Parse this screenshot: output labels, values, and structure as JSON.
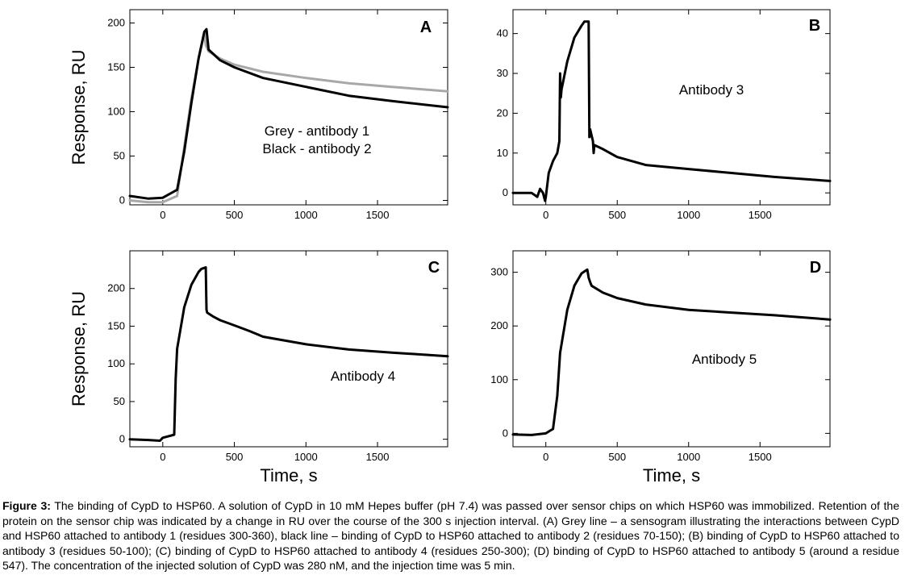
{
  "figure": {
    "caption_label": "Figure 3:",
    "caption_text": "The binding of CypD to HSP60. A solution of CypD in 10 mM Hepes buffer (pH 7.4) was passed over sensor chips on which HSP60 was immobilized. Retention of the protein on the sensor chip was indicated by a change in RU over the course of the 300 s injection interval. (A) Grey line – a sensogram illustrating the interactions between CypD and HSP60 attached to antibody 1 (residues 300-360), black line – binding of CypD to HSP60 attached to antibody 2 (residues 70-150); (B) binding of CypD to HSP60 attached to antibody 3 (residues 50-100); (C) binding of CypD to HSP60 attached to antibody 4 (residues 250-300); (D) binding of CypD to HSP60 attached to antibody 5 (around a residue 547). The concentration of the injected solution of CypD was 280 nM, and the injection time was 5 min.",
    "ylabel": "Response, RU",
    "xlabel": "Time, s"
  },
  "colors": {
    "black": "#000000",
    "grey": "#a8a8a8"
  },
  "chart_data": [
    {
      "panel": "A",
      "type": "line",
      "xlim": [
        -230,
        1990
      ],
      "ylim": [
        -5,
        215
      ],
      "xticks": [
        0,
        500,
        1000,
        1500
      ],
      "yticks": [
        0,
        50,
        100,
        150,
        200
      ],
      "annotations": [
        "Grey - antibody 1",
        "Black - antibody 2"
      ],
      "series": [
        {
          "name": "antibody 1",
          "color": "grey",
          "x": [
            -230,
            -100,
            0,
            100,
            150,
            200,
            250,
            290,
            300,
            320,
            400,
            500,
            700,
            1000,
            1300,
            1600,
            1990
          ],
          "y": [
            0,
            -2,
            -2,
            5,
            60,
            115,
            160,
            188,
            175,
            168,
            160,
            153,
            145,
            138,
            132,
            128,
            123
          ]
        },
        {
          "name": "antibody 2",
          "color": "black",
          "x": [
            -230,
            -100,
            0,
            100,
            150,
            200,
            250,
            290,
            305,
            320,
            400,
            500,
            700,
            1000,
            1300,
            1600,
            1990
          ],
          "y": [
            5,
            2,
            3,
            12,
            55,
            110,
            160,
            190,
            193,
            170,
            158,
            150,
            138,
            128,
            118,
            112,
            105
          ]
        }
      ]
    },
    {
      "panel": "B",
      "type": "line",
      "xlim": [
        -230,
        1990
      ],
      "ylim": [
        -3,
        46
      ],
      "xticks": [
        0,
        500,
        1000,
        1500
      ],
      "yticks": [
        0,
        10,
        20,
        30,
        40
      ],
      "annotations": [
        "Antibody 3"
      ],
      "series": [
        {
          "name": "antibody 3",
          "color": "black",
          "x": [
            -230,
            -100,
            -60,
            -40,
            -20,
            -5,
            0,
            20,
            50,
            80,
            95,
            100,
            105,
            110,
            150,
            200,
            250,
            270,
            300,
            305,
            310,
            330,
            335,
            340,
            400,
            500,
            700,
            1000,
            1300,
            1600,
            1990
          ],
          "y": [
            0,
            0,
            -1,
            1,
            0,
            -2,
            -1,
            5,
            8,
            10,
            13,
            30,
            24,
            26,
            33,
            39,
            42,
            43,
            43,
            14,
            16,
            13,
            10,
            12,
            11,
            9,
            7,
            6,
            5,
            4,
            3
          ]
        }
      ]
    },
    {
      "panel": "C",
      "type": "line",
      "xlim": [
        -230,
        1990
      ],
      "ylim": [
        -10,
        250
      ],
      "xticks": [
        0,
        500,
        1000,
        1500
      ],
      "yticks": [
        0,
        50,
        100,
        150,
        200
      ],
      "annotations": [
        "Antibody 4"
      ],
      "series": [
        {
          "name": "antibody 4",
          "color": "black",
          "x": [
            -230,
            -100,
            -20,
            0,
            60,
            80,
            90,
            100,
            150,
            200,
            250,
            270,
            300,
            305,
            310,
            350,
            400,
            500,
            600,
            650,
            700,
            1000,
            1300,
            1600,
            1990
          ],
          "y": [
            0,
            -1,
            -2,
            2,
            5,
            6,
            80,
            120,
            175,
            205,
            222,
            226,
            228,
            172,
            168,
            163,
            158,
            151,
            144,
            140,
            136,
            126,
            119,
            115,
            110
          ]
        }
      ]
    },
    {
      "panel": "D",
      "type": "line",
      "xlim": [
        -230,
        1990
      ],
      "ylim": [
        -25,
        340
      ],
      "xticks": [
        0,
        500,
        1000,
        1500
      ],
      "yticks": [
        0,
        100,
        200,
        300
      ],
      "annotations": [
        "Antibody 5"
      ],
      "series": [
        {
          "name": "antibody 5",
          "color": "black",
          "x": [
            -230,
            -100,
            0,
            30,
            50,
            80,
            100,
            150,
            200,
            250,
            290,
            300,
            310,
            320,
            400,
            500,
            700,
            1000,
            1300,
            1600,
            1990
          ],
          "y": [
            -2,
            -3,
            0,
            5,
            8,
            70,
            150,
            230,
            275,
            298,
            305,
            290,
            282,
            275,
            262,
            252,
            240,
            230,
            225,
            220,
            212
          ]
        }
      ]
    }
  ]
}
